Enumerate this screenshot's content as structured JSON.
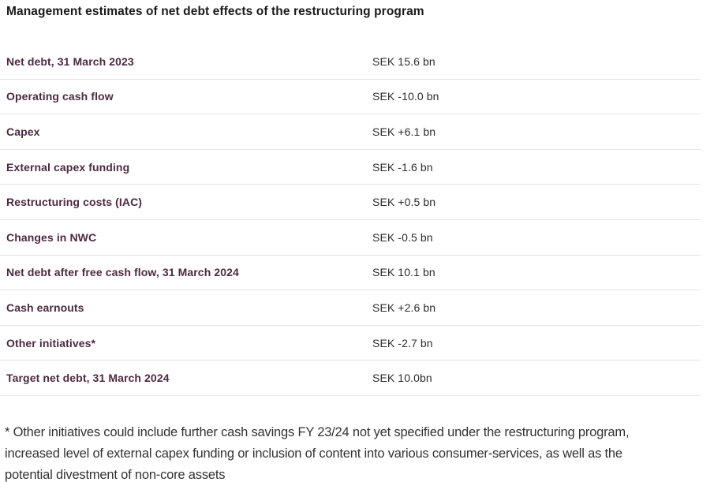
{
  "page": {
    "title": "Management estimates of net debt effects of the restructuring program"
  },
  "table": {
    "rows": [
      {
        "label": "Net debt, 31 March 2023",
        "value": "SEK 15.6 bn"
      },
      {
        "label": "Operating cash flow",
        "value": "SEK -10.0 bn"
      },
      {
        "label": "Capex",
        "value": "SEK +6.1 bn"
      },
      {
        "label": "External capex funding",
        "value": "SEK -1.6 bn"
      },
      {
        "label": "Restructuring costs (IAC)",
        "value": "SEK +0.5 bn"
      },
      {
        "label": "Changes in NWC",
        "value": "SEK -0.5 bn"
      },
      {
        "label": "Net debt after free cash flow, 31 March 2024",
        "value": "SEK 10.1 bn"
      },
      {
        "label": "Cash earnouts",
        "value": "SEK +2.6 bn"
      },
      {
        "label": "Other initiatives*",
        "value": "SEK -2.7 bn"
      },
      {
        "label": "Target net debt, 31 March 2024",
        "value": "SEK 10.0bn"
      }
    ]
  },
  "footnote": {
    "lines": [
      "* Other initiatives could include further cash savings FY 23/24 not yet specified under the restructuring program,",
      "increased level of external capex funding or inclusion of content into various consumer-services, as well as the",
      "potential divestment of non-core assets"
    ]
  },
  "colors": {
    "title_text": "#191919",
    "row_label": "#4d2941",
    "row_value": "#2d2d2d",
    "separator": "#e4e4e4",
    "footnote_text": "#333333",
    "background": "#ffffff"
  }
}
